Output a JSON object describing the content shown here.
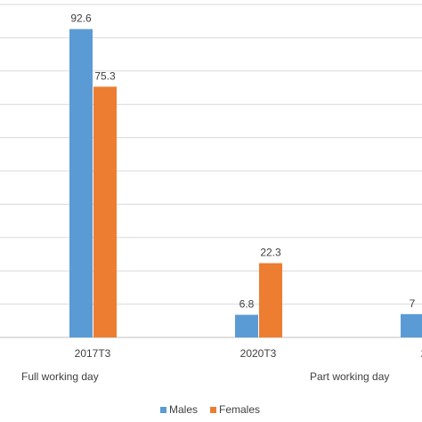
{
  "chart_data": {
    "type": "bar",
    "title": "",
    "xlabel": "",
    "ylabel": "",
    "ylim": [
      0,
      100
    ],
    "grid": true,
    "legend_position": "bottom",
    "categories": [
      "2017T3",
      "2020T3",
      "2"
    ],
    "groups": [
      "Full working day",
      "Part working day"
    ],
    "series": [
      {
        "name": "Males",
        "color": "#5b9bd5",
        "values": [
          92.6,
          6.8,
          7
        ],
        "labels": [
          "92.6",
          "6.8",
          "7"
        ]
      },
      {
        "name": "Females",
        "color": "#ed7d31",
        "values": [
          75.3,
          22.3,
          null
        ],
        "labels": [
          "75.3",
          "22.3",
          ""
        ]
      }
    ]
  }
}
